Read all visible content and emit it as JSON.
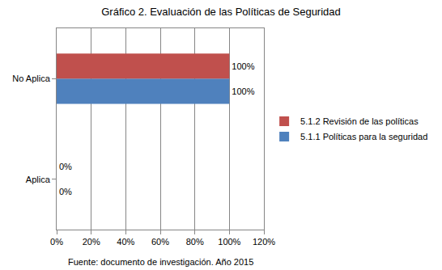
{
  "chart_data": {
    "type": "bar",
    "title": "Gráfico 2. Evaluación de las Políticas de Seguridad",
    "annotations": [
      "Fuente: documento de investigación. Año 2015"
    ],
    "orientation": "horizontal",
    "categories": [
      "Aplica",
      "No Aplica"
    ],
    "series": [
      {
        "name": "5.1.1 Políticas para la seguridad",
        "color": "#4f81bd",
        "values": [
          0,
          100
        ],
        "value_labels": [
          "0%",
          "100%"
        ]
      },
      {
        "name": "5.1.2 Revisión de las políticas",
        "color": "#c0504d",
        "values": [
          0,
          100
        ],
        "value_labels": [
          "0%",
          "100%"
        ]
      }
    ],
    "xlim": [
      0,
      120
    ],
    "xticks": [
      {
        "value": 0,
        "label": "0%"
      },
      {
        "value": 20,
        "label": "20%"
      },
      {
        "value": 40,
        "label": "40%"
      },
      {
        "value": 60,
        "label": "60%"
      },
      {
        "value": 80,
        "label": "80%"
      },
      {
        "value": 100,
        "label": "100%"
      },
      {
        "value": 120,
        "label": "120%"
      }
    ],
    "grid": true,
    "legend": "right",
    "data_labels": true
  }
}
